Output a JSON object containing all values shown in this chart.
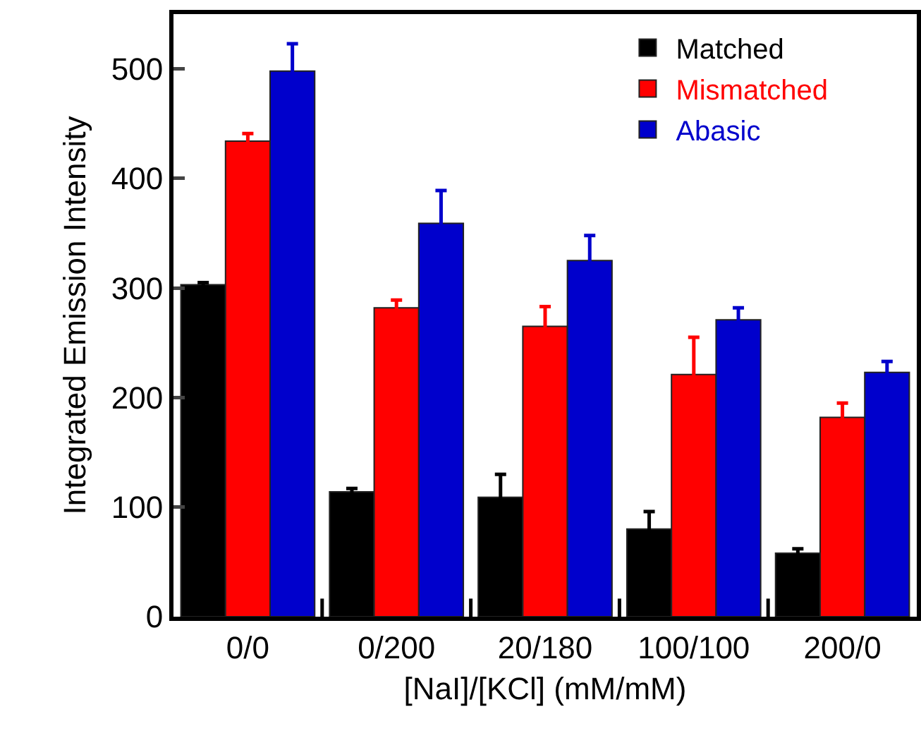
{
  "chart_data": {
    "type": "bar",
    "xlabel": "[NaI]/[KCl] (mM/mM)",
    "ylabel": "Integrated Emission Intensity",
    "categories": [
      "0/0",
      "0/200",
      "20/180",
      "100/100",
      "200/0"
    ],
    "series": [
      {
        "name": "Matched",
        "color": "#000000",
        "values": [
          303,
          114,
          109,
          80,
          58
        ],
        "errors": [
          2,
          3,
          21,
          16,
          4
        ]
      },
      {
        "name": "Mismatched",
        "color": "#ff0000",
        "values": [
          434,
          282,
          265,
          221,
          182
        ],
        "errors": [
          7,
          7,
          18,
          34,
          13
        ]
      },
      {
        "name": "Abasic",
        "color": "#0000cc",
        "values": [
          498,
          359,
          325,
          271,
          223
        ],
        "errors": [
          25,
          30,
          23,
          11,
          10
        ]
      }
    ],
    "ylim": [
      0,
      550
    ],
    "yticks": [
      0,
      100,
      200,
      300,
      400,
      500
    ],
    "grid": false,
    "legend": "top right"
  }
}
